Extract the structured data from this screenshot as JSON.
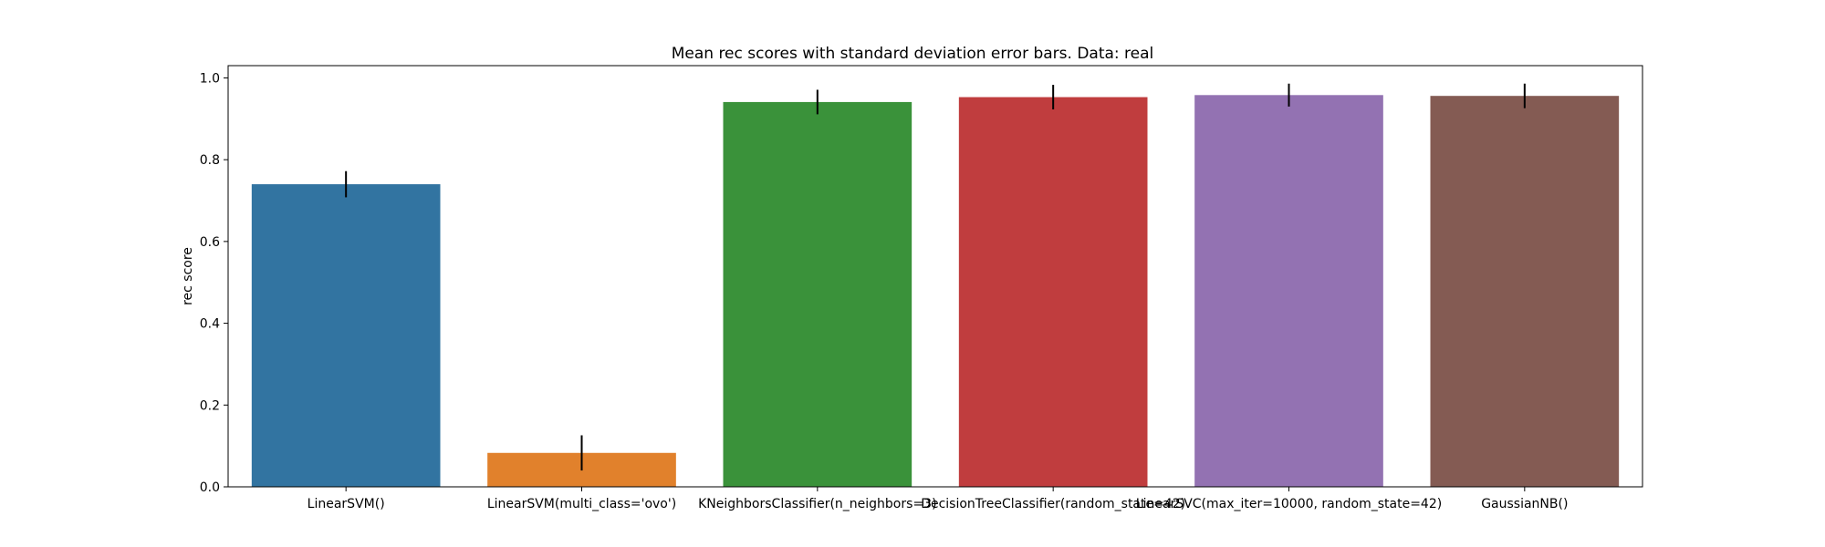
{
  "chart_data": {
    "type": "bar",
    "title": "Mean rec scores with standard deviation error bars. Data: real",
    "xlabel": "",
    "ylabel": "rec score",
    "ylim": [
      0,
      1.03
    ],
    "yticks": [
      "0.0",
      "0.2",
      "0.4",
      "0.6",
      "0.8",
      "1.0"
    ],
    "grid": false,
    "legend": "none",
    "categories": [
      "LinearSVM()",
      "LinearSVM(multi_class='ovo')",
      "KNeighborsClassifier(n_neighbors=3)",
      "DecisionTreeClassifier(random_state=42)",
      "LinearSVC(max_iter=10000, random_state=42)",
      "GaussianNB()"
    ],
    "values": [
      0.74,
      0.083,
      0.941,
      0.953,
      0.958,
      0.956
    ],
    "errors": [
      0.032,
      0.043,
      0.03,
      0.03,
      0.028,
      0.03
    ],
    "colors": [
      "#3274a1",
      "#e1812c",
      "#3a923a",
      "#c03d3e",
      "#9372b2",
      "#845b53"
    ],
    "error_color": "#000000"
  }
}
